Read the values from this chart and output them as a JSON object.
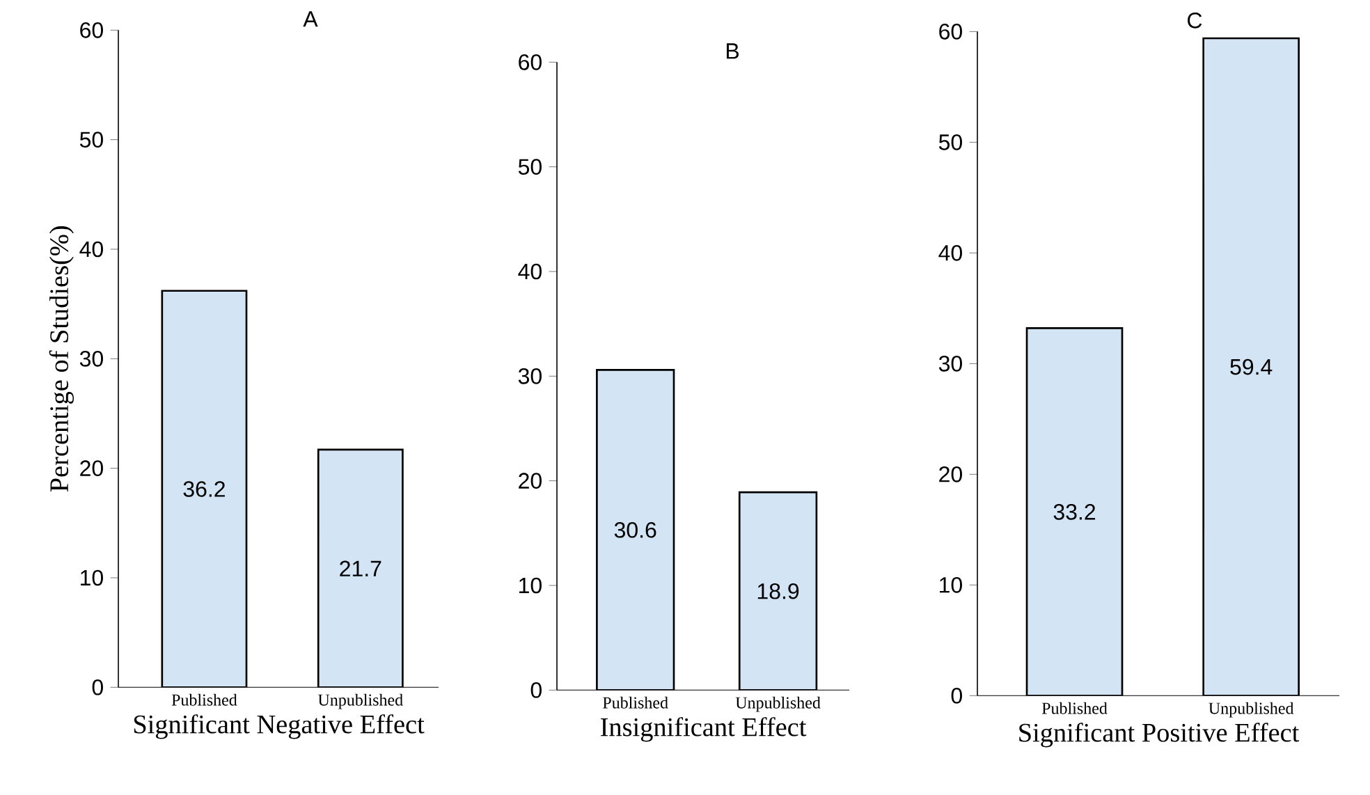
{
  "chart_data": [
    {
      "type": "bar",
      "title": "A",
      "xlabel": "Significant  Negative Effect",
      "ylabel": "Percentige of Studies(%)",
      "categories": [
        "Published",
        "Unpublished"
      ],
      "values": [
        36.2,
        21.7
      ],
      "color": "#d3e4f4",
      "ylim": [
        0,
        60
      ],
      "yticks": [
        0,
        10,
        20,
        30,
        40,
        50,
        60
      ],
      "data_labels": true
    },
    {
      "type": "bar",
      "title": "B",
      "xlabel": "Insignificant  Effect",
      "categories": [
        "Published",
        "Unpublished"
      ],
      "values": [
        30.6,
        18.9
      ],
      "color": "#d3e4f4",
      "ylim": [
        0,
        60
      ],
      "yticks": [
        0,
        10,
        20,
        30,
        40,
        50,
        60
      ],
      "data_labels": true
    },
    {
      "type": "bar",
      "title": "C",
      "xlabel": "Significant  Positive Effect",
      "categories": [
        "Published",
        "Unpublished"
      ],
      "values": [
        33.2,
        59.4
      ],
      "color": "#d3e4f4",
      "ylim": [
        0,
        60
      ],
      "yticks": [
        0,
        10,
        20,
        30,
        40,
        50,
        60
      ],
      "data_labels": true
    }
  ]
}
